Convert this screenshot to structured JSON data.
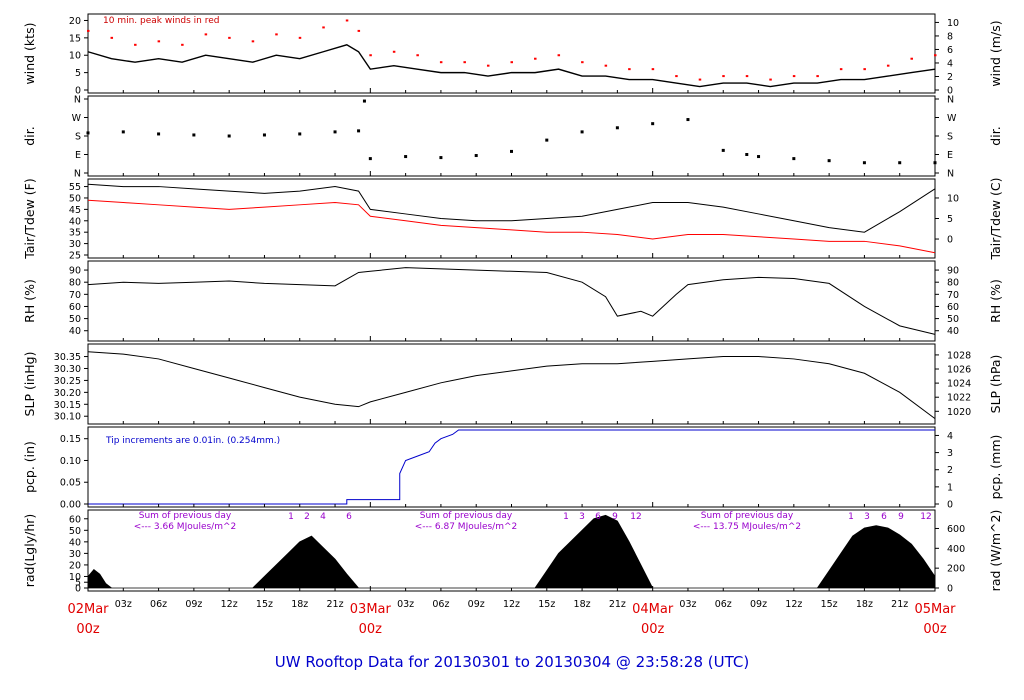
{
  "title": "UW Rooftop Data for 20130301  to  20130304 @ 23:58:28  (UTC)",
  "colors": {
    "main": "#000000",
    "peak": "#ff0000",
    "dew": "#ff0000",
    "precip": "#0000cc",
    "note_red": "#cc0000",
    "note_blue": "#0000cc",
    "note_purple": "#9900cc",
    "day_label": "#e00000",
    "title": "#0000cc"
  },
  "chart_data": [
    {
      "type": "line",
      "panel": "wind",
      "ylabel_left": "wind (kts)",
      "ylabel_right": "wind (m/s)",
      "ylim_left": [
        0,
        21
      ],
      "yticks_left": [
        "0",
        "5",
        "10",
        "15",
        "20"
      ],
      "yticks_right": [
        "0",
        "2",
        "4",
        "6",
        "8",
        "10"
      ],
      "annotation": "10 min. peak winds in red",
      "series": [
        {
          "name": "wind",
          "color": "#000000",
          "x": [
            0,
            2,
            4,
            6,
            8,
            10,
            12,
            14,
            16,
            18,
            20,
            22,
            23,
            24,
            26,
            28,
            30,
            32,
            34,
            36,
            38,
            40,
            42,
            44,
            46,
            48,
            50,
            52,
            54,
            56,
            58,
            60,
            62,
            64,
            66,
            68,
            70,
            72
          ],
          "y": [
            11,
            9,
            8,
            9,
            8,
            10,
            9,
            8,
            10,
            9,
            11,
            13,
            11,
            6,
            7,
            6,
            5,
            5,
            4,
            5,
            5,
            6,
            4,
            4,
            3,
            3,
            2,
            1,
            2,
            2,
            1,
            2,
            2,
            3,
            3,
            4,
            5,
            6
          ]
        },
        {
          "name": "10 min. peak winds",
          "color": "#ff0000",
          "x": [
            0,
            2,
            4,
            6,
            8,
            10,
            12,
            14,
            16,
            18,
            20,
            22,
            23,
            24,
            26,
            28,
            30,
            32,
            34,
            36,
            38,
            40,
            42,
            44,
            46,
            48,
            50,
            52,
            54,
            56,
            58,
            60,
            62,
            64,
            66,
            68,
            70,
            72
          ],
          "y": [
            17,
            15,
            13,
            14,
            13,
            16,
            15,
            14,
            16,
            15,
            18,
            20,
            17,
            10,
            11,
            10,
            8,
            8,
            7,
            8,
            9,
            10,
            8,
            7,
            6,
            6,
            4,
            3,
            4,
            4,
            3,
            4,
            4,
            6,
            6,
            7,
            9,
            10
          ]
        }
      ]
    },
    {
      "type": "scatter",
      "panel": "dir",
      "ylabel_left": "dir.",
      "ylabel_right": "dir.",
      "yticks_left": [
        "N",
        "E",
        "S",
        "W",
        "N"
      ],
      "yticks_right": [
        "N",
        "E",
        "S",
        "W",
        "N"
      ],
      "series": [
        {
          "name": "direction",
          "color": "#000000",
          "x": [
            0,
            3,
            6,
            9,
            12,
            15,
            18,
            21,
            23,
            23.5,
            24,
            27,
            30,
            33,
            36,
            39,
            42,
            45,
            48,
            51,
            54,
            56,
            57,
            60,
            63,
            66,
            69,
            72
          ],
          "y": [
            195,
            200,
            190,
            185,
            180,
            185,
            190,
            200,
            205,
            350,
            70,
            80,
            75,
            85,
            105,
            160,
            200,
            220,
            240,
            260,
            110,
            90,
            80,
            70,
            60,
            50,
            50,
            50
          ]
        }
      ]
    },
    {
      "type": "line",
      "panel": "temp",
      "ylabel_left": "Tair/Tdew (F)",
      "ylabel_right": "Tair/Tdew (C)",
      "ylim_left": [
        25,
        57
      ],
      "yticks_left": [
        "25",
        "30",
        "35",
        "40",
        "45",
        "50",
        "55"
      ],
      "yticks_right": [
        "0",
        "5",
        "10"
      ],
      "series": [
        {
          "name": "Tair",
          "color": "#000000",
          "x": [
            0,
            3,
            6,
            9,
            12,
            15,
            18,
            21,
            23,
            24,
            27,
            30,
            33,
            36,
            39,
            42,
            45,
            48,
            51,
            54,
            57,
            60,
            63,
            66,
            69,
            72
          ],
          "y": [
            56,
            55,
            55,
            54,
            53,
            52,
            53,
            55,
            53,
            45,
            43,
            41,
            40,
            40,
            41,
            42,
            45,
            48,
            48,
            46,
            43,
            40,
            37,
            35,
            44,
            54
          ]
        },
        {
          "name": "Tdew",
          "color": "#ff0000",
          "x": [
            0,
            3,
            6,
            9,
            12,
            15,
            18,
            21,
            23,
            24,
            27,
            30,
            33,
            36,
            39,
            42,
            45,
            48,
            51,
            54,
            57,
            60,
            63,
            66,
            69,
            72
          ],
          "y": [
            49,
            48,
            47,
            46,
            45,
            46,
            47,
            48,
            47,
            42,
            40,
            38,
            37,
            36,
            35,
            35,
            34,
            32,
            34,
            34,
            33,
            32,
            31,
            31,
            29,
            26
          ]
        }
      ]
    },
    {
      "type": "line",
      "panel": "rh",
      "ylabel_left": "RH (%)",
      "ylabel_right": "RH (%)",
      "ylim_left": [
        34,
        95
      ],
      "yticks_left": [
        "40",
        "50",
        "60",
        "70",
        "80",
        "90"
      ],
      "yticks_right": [
        "40",
        "50",
        "60",
        "70",
        "80",
        "90"
      ],
      "series": [
        {
          "name": "RH",
          "color": "#000000",
          "x": [
            0,
            3,
            6,
            9,
            12,
            15,
            18,
            21,
            23,
            24,
            27,
            30,
            33,
            36,
            39,
            42,
            44,
            45,
            47,
            48,
            50,
            51,
            54,
            57,
            60,
            63,
            66,
            69,
            72
          ],
          "y": [
            78,
            80,
            79,
            80,
            81,
            79,
            78,
            77,
            88,
            89,
            92,
            91,
            90,
            89,
            88,
            80,
            68,
            52,
            56,
            52,
            70,
            78,
            82,
            84,
            83,
            79,
            60,
            44,
            37
          ]
        }
      ]
    },
    {
      "type": "line",
      "panel": "slp",
      "ylabel_left": "SLP (inHg)",
      "ylabel_right": "SLP (hPa)",
      "ylim_left": [
        30.08,
        30.39
      ],
      "yticks_left": [
        "30.10",
        "30.15",
        "30.20",
        "30.25",
        "30.30",
        "30.35"
      ],
      "yticks_right": [
        "1020",
        "1022",
        "1024",
        "1026",
        "1028"
      ],
      "series": [
        {
          "name": "SLP",
          "color": "#000000",
          "x": [
            0,
            3,
            6,
            9,
            12,
            15,
            18,
            21,
            23,
            24,
            27,
            30,
            33,
            36,
            39,
            42,
            45,
            48,
            51,
            54,
            57,
            60,
            63,
            66,
            69,
            72
          ],
          "y": [
            30.37,
            30.36,
            30.34,
            30.3,
            30.26,
            30.22,
            30.18,
            30.15,
            30.14,
            30.16,
            30.2,
            30.24,
            30.27,
            30.29,
            30.31,
            30.32,
            30.32,
            30.33,
            30.34,
            30.35,
            30.35,
            30.34,
            30.32,
            30.28,
            30.2,
            30.09
          ]
        }
      ]
    },
    {
      "type": "line",
      "panel": "pcp",
      "ylabel_left": "pcp. (in)",
      "ylabel_right": "pcp. (mm)",
      "ylim_left": [
        0,
        0.17
      ],
      "yticks_left": [
        "0.00",
        "0.05",
        "0.10",
        "0.15"
      ],
      "yticks_right": [
        "0",
        "1",
        "2",
        "3",
        "4"
      ],
      "annotation": "Tip increments are 0.01in. (0.254mm.)",
      "series": [
        {
          "name": "precipitation",
          "color": "#0000cc",
          "x": [
            0,
            22,
            22,
            26.5,
            26.5,
            27,
            28,
            29,
            29.5,
            30,
            31,
            31.5,
            32,
            72
          ],
          "y": [
            0,
            0,
            0.01,
            0.01,
            0.07,
            0.1,
            0.11,
            0.12,
            0.14,
            0.15,
            0.16,
            0.17,
            0.17,
            0.17
          ]
        }
      ]
    },
    {
      "type": "area",
      "panel": "rad",
      "ylabel_left": "rad(Lgly/hr)",
      "ylabel_right": "rad (W/m^2)",
      "ylim_left": [
        0,
        65
      ],
      "yticks_left": [
        "0",
        "5",
        "10",
        "20",
        "30",
        "40",
        "50",
        "60"
      ],
      "yticks_right": [
        "0",
        "200",
        "400",
        "600"
      ],
      "series": [
        {
          "name": "radiation",
          "color": "#000000",
          "x": [
            0,
            0.5,
            1,
            1.5,
            2,
            14,
            15,
            16,
            17,
            18,
            19,
            20,
            21,
            22,
            23,
            38,
            39,
            40,
            42,
            43,
            44,
            45,
            46,
            47,
            48,
            62,
            63,
            64,
            65,
            66,
            67,
            68,
            69,
            70,
            71,
            72
          ],
          "y": [
            10,
            16,
            12,
            4,
            0,
            0,
            10,
            20,
            30,
            40,
            45,
            35,
            25,
            12,
            0,
            0,
            15,
            30,
            50,
            60,
            63,
            58,
            40,
            20,
            0,
            0,
            15,
            30,
            45,
            52,
            54,
            52,
            46,
            38,
            25,
            10
          ]
        }
      ],
      "sum_labels": [
        {
          "title": "Sum of previous day",
          "value": "<--- 3.66 MJoules/m^2"
        },
        {
          "title": "Sum of previous day",
          "value": "<--- 6.87 MJoules/m^2"
        },
        {
          "title": "Sum of previous day",
          "value": "<--- 13.75 MJoules/m^2"
        }
      ],
      "hour_marks": [
        {
          "items": [
            "1",
            "2",
            "4",
            "6"
          ]
        },
        {
          "items": [
            "1",
            "3",
            "6",
            "9",
            "12"
          ]
        },
        {
          "items": [
            "1",
            "3",
            "6",
            "9",
            "12"
          ]
        }
      ]
    }
  ],
  "x_axis": {
    "hour_ticks": [
      "03z",
      "06z",
      "09z",
      "12z",
      "15z",
      "18z",
      "21z",
      "03z",
      "06z",
      "09z",
      "12z",
      "15z",
      "18z",
      "21z",
      "03z",
      "06z",
      "09z",
      "12z",
      "15z",
      "18z",
      "21z"
    ],
    "days": [
      {
        "label": "02Mar",
        "sub": "00z"
      },
      {
        "label": "03Mar",
        "sub": "00z"
      },
      {
        "label": "04Mar",
        "sub": "00z"
      },
      {
        "label": "05Mar",
        "sub": "00z"
      }
    ]
  }
}
